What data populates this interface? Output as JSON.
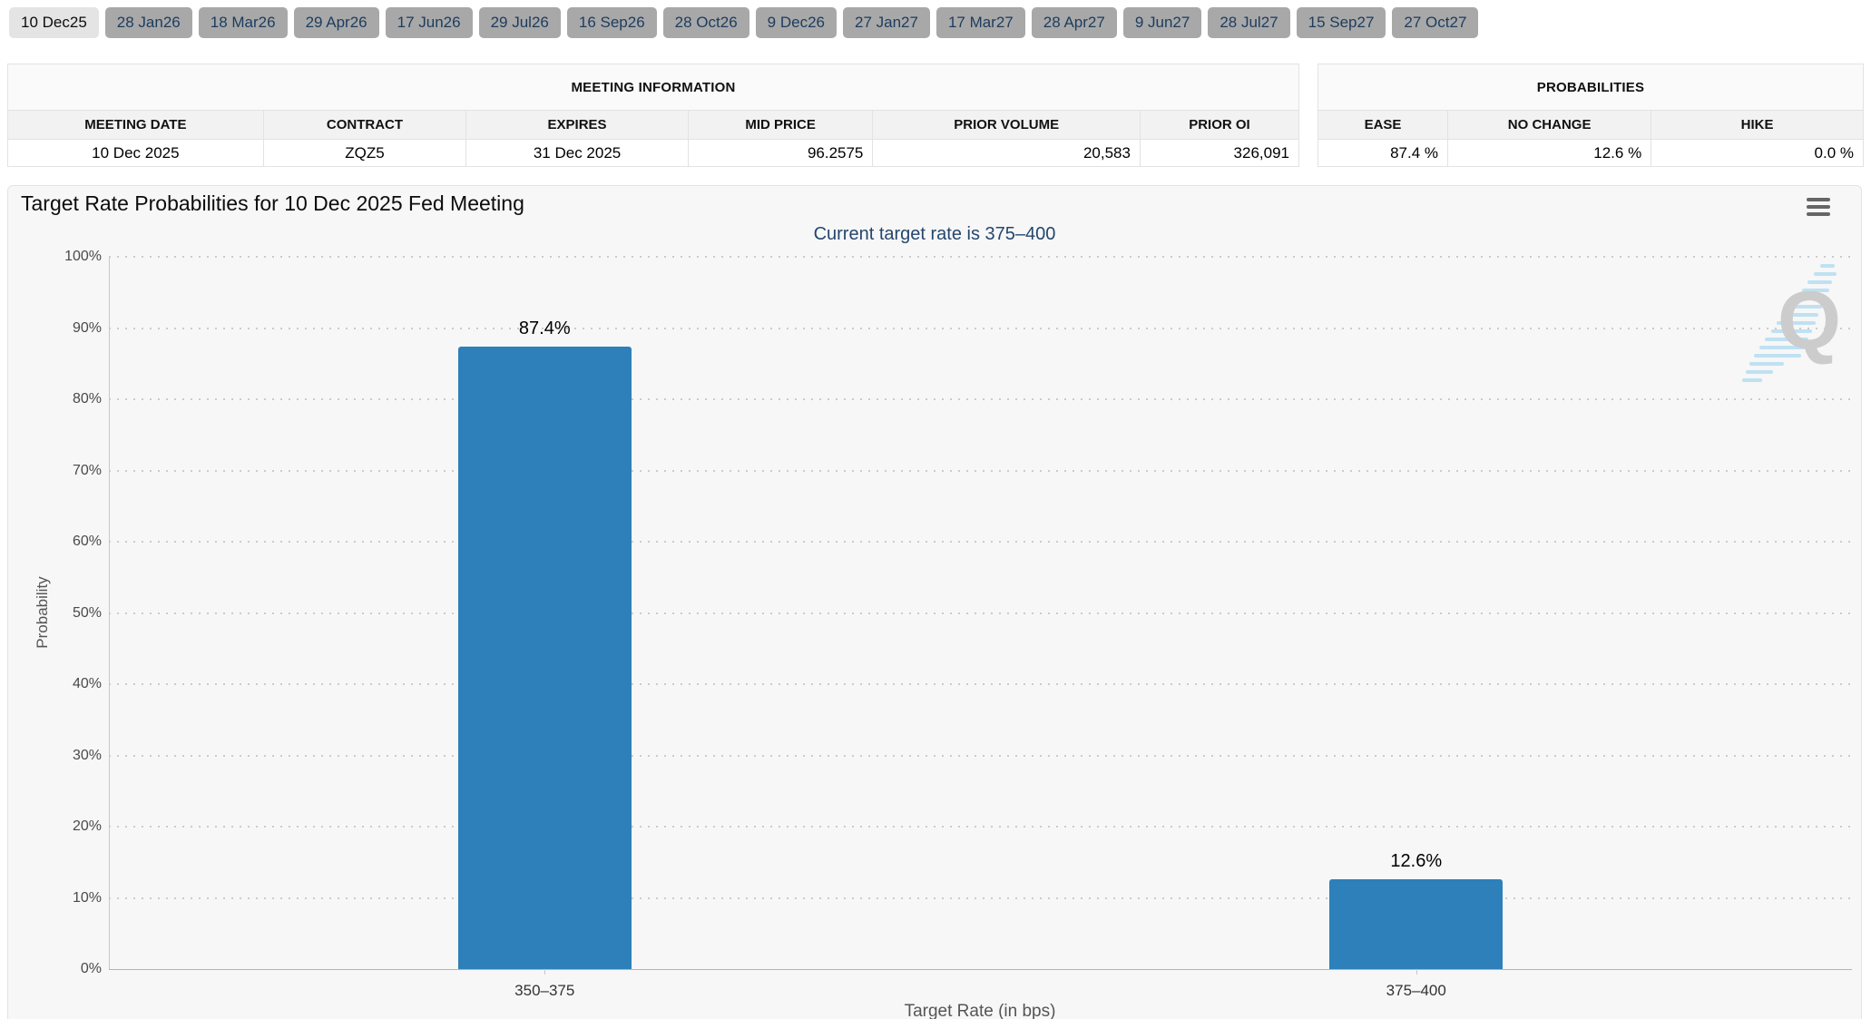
{
  "tabs": {
    "active_index": 0,
    "items": [
      "10 Dec25",
      "28 Jan26",
      "18 Mar26",
      "29 Apr26",
      "17 Jun26",
      "29 Jul26",
      "16 Sep26",
      "28 Oct26",
      "9 Dec26",
      "27 Jan27",
      "17 Mar27",
      "28 Apr27",
      "9 Jun27",
      "28 Jul27",
      "15 Sep27",
      "27 Oct27"
    ]
  },
  "tables": {
    "meeting_info": {
      "caption": "MEETING INFORMATION",
      "columns": [
        "MEETING DATE",
        "CONTRACT",
        "EXPIRES",
        "MID PRICE",
        "PRIOR VOLUME",
        "PRIOR OI"
      ],
      "values": [
        "10 Dec 2025",
        "ZQZ5",
        "31 Dec 2025",
        "96.2575",
        "20,583",
        "326,091"
      ],
      "align": [
        "center",
        "center",
        "center",
        "right",
        "right",
        "right"
      ],
      "col_widths": [
        "19.8%",
        "15.7%",
        "17.2%",
        "14.3%",
        "20.7%",
        "12.3%"
      ]
    },
    "probabilities": {
      "caption": "PROBABILITIES",
      "columns": [
        "EASE",
        "NO CHANGE",
        "HIKE"
      ],
      "values": [
        "87.4 %",
        "12.6 %",
        "0.0 %"
      ],
      "align": [
        "right",
        "right",
        "right"
      ],
      "col_widths": [
        "23.8%",
        "37.3%",
        "38.9%"
      ]
    }
  },
  "chart_data": {
    "type": "bar",
    "title": "Target Rate Probabilities for 10 Dec 2025 Fed Meeting",
    "subtitle": "Current target rate is 375–400",
    "categories": [
      "350–375",
      "375–400"
    ],
    "values": [
      87.4,
      12.6
    ],
    "data_labels": [
      "87.4%",
      "12.6%"
    ],
    "xlabel": "Target Rate (in bps)",
    "ylabel": "Probability",
    "ylim": [
      0,
      100
    ],
    "ytick_step": 10,
    "ytick_suffix": "%",
    "grid": "horizontal-dotted",
    "legend": "none",
    "bar_color": "#2d80b9"
  },
  "icons": {
    "menu_icon": "hamburger-icon",
    "watermark_letter": "Q"
  },
  "colors": {
    "bar": "#2d80b9",
    "subtitle_text": "#24466e",
    "tab_active_bg": "#e4e4e4",
    "tab_inactive_bg": "#a8a8a8",
    "tab_text": "#1c3c5e",
    "chart_bg": "#f7f7f7"
  }
}
